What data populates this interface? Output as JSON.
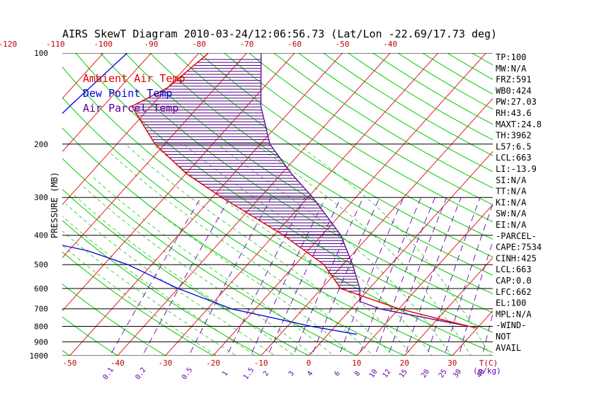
{
  "title": "AIRS SkewT Diagram 2010-03-24/12:06:56.73 (Lat/Lon -22.69/17.73 deg)",
  "ylabel": "PRESSURE (MB)",
  "colors": {
    "ambient": "#e00000",
    "dewpoint": "#0000dd",
    "parcel": "#5a0090",
    "isotherm": "#e02020",
    "dry_adiabat": "#00cc00",
    "moist_adiabat": "#33cc33",
    "mixing_ratio": "#6a00b0",
    "isobar": "#000000",
    "hatch": "#4b0082"
  },
  "legend": {
    "ambient": "Ambient Air Temp",
    "dewpoint": "Dew Point Temp",
    "parcel": "Air Parcel Temp"
  },
  "axes": {
    "pressure_ticks": [
      "100",
      "200",
      "300",
      "400",
      "500",
      "600",
      "700",
      "800",
      "900",
      "1000"
    ],
    "top_temp_ticks": [
      "-120",
      "-110",
      "-100",
      "-90",
      "-80",
      "-70",
      "-60",
      "-50",
      "-40"
    ],
    "bottom_temp_ticks": [
      "-50",
      "-40",
      "-30",
      "-20",
      "-10",
      "0",
      "10",
      "20",
      "30"
    ],
    "bottom_unit": "T(C)",
    "mixing_ratio_ticks": [
      "0.1",
      "0.2",
      "0.5",
      "1",
      "1.5",
      "2",
      "3",
      "4",
      "6",
      "8",
      "10",
      "12",
      "15",
      "20",
      "25",
      "30",
      "40"
    ],
    "mixing_ratio_unit": "(g/kg)"
  },
  "stats": [
    "TP:100",
    "MW:N/A",
    "FRZ:591",
    "WB0:424",
    "PW:27.03",
    "RH:43.6",
    "MAXT:24.8",
    "TH:3962",
    "L57:6.5",
    "LCL:663",
    "LI:-13.9",
    "SI:N/A",
    "TT:N/A",
    "KI:N/A",
    "SW:N/A",
    "EI:N/A",
    "-PARCEL-",
    "CAPE:7534",
    "CINH:425",
    "LCL:663",
    "CAP:0.0",
    "LFC:662",
    "EL:100",
    "MPL:N/A",
    "-WIND-",
    "NOT",
    "AVAIL"
  ],
  "chart_data": {
    "type": "line",
    "title": "AIRS SkewT Diagram 2010-03-24/12:06:56.73 (Lat/Lon -22.69/17.73 deg)",
    "ylabel": "PRESSURE (MB)",
    "xlabel": "T(C)",
    "y_scale": "log",
    "y_reversed": true,
    "ylim": [
      1000,
      100
    ],
    "xlim_at_bottom": [
      -53,
      37
    ],
    "grid": true,
    "legend_position": "top-left",
    "series": [
      {
        "name": "Ambient Air Temp",
        "points": [
          {
            "p": 100,
            "t": -78
          },
          {
            "p": 130,
            "t": -80
          },
          {
            "p": 150,
            "t": -84
          },
          {
            "p": 200,
            "t": -72
          },
          {
            "p": 250,
            "t": -60
          },
          {
            "p": 300,
            "t": -48
          },
          {
            "p": 400,
            "t": -28
          },
          {
            "p": 500,
            "t": -14
          },
          {
            "p": 600,
            "t": -6
          },
          {
            "p": 700,
            "t": 10
          },
          {
            "p": 800,
            "t": 28
          },
          {
            "p": 810,
            "t": 30
          }
        ]
      },
      {
        "name": "Dew Point Temp",
        "points": [
          {
            "p": 100,
            "t": -95
          },
          {
            "p": 150,
            "t": -97
          },
          {
            "p": 200,
            "t": -98
          },
          {
            "p": 250,
            "t": -103
          },
          {
            "p": 300,
            "t": -111
          },
          {
            "p": 400,
            "t": -84
          },
          {
            "p": 450,
            "t": -66
          },
          {
            "p": 500,
            "t": -55
          },
          {
            "p": 600,
            "t": -40
          },
          {
            "p": 700,
            "t": -25
          },
          {
            "p": 800,
            "t": -5
          },
          {
            "p": 850,
            "t": 6
          }
        ]
      },
      {
        "name": "Air Parcel Temp",
        "points": [
          {
            "p": 100,
            "t": -67
          },
          {
            "p": 150,
            "t": -57
          },
          {
            "p": 200,
            "t": -48
          },
          {
            "p": 250,
            "t": -38
          },
          {
            "p": 300,
            "t": -29
          },
          {
            "p": 350,
            "t": -22
          },
          {
            "p": 400,
            "t": -16
          },
          {
            "p": 500,
            "t": -8
          },
          {
            "p": 600,
            "t": -2
          },
          {
            "p": 662,
            "t": 0.5
          },
          {
            "p": 700,
            "t": 6
          },
          {
            "p": 800,
            "t": 28
          }
        ]
      }
    ]
  }
}
